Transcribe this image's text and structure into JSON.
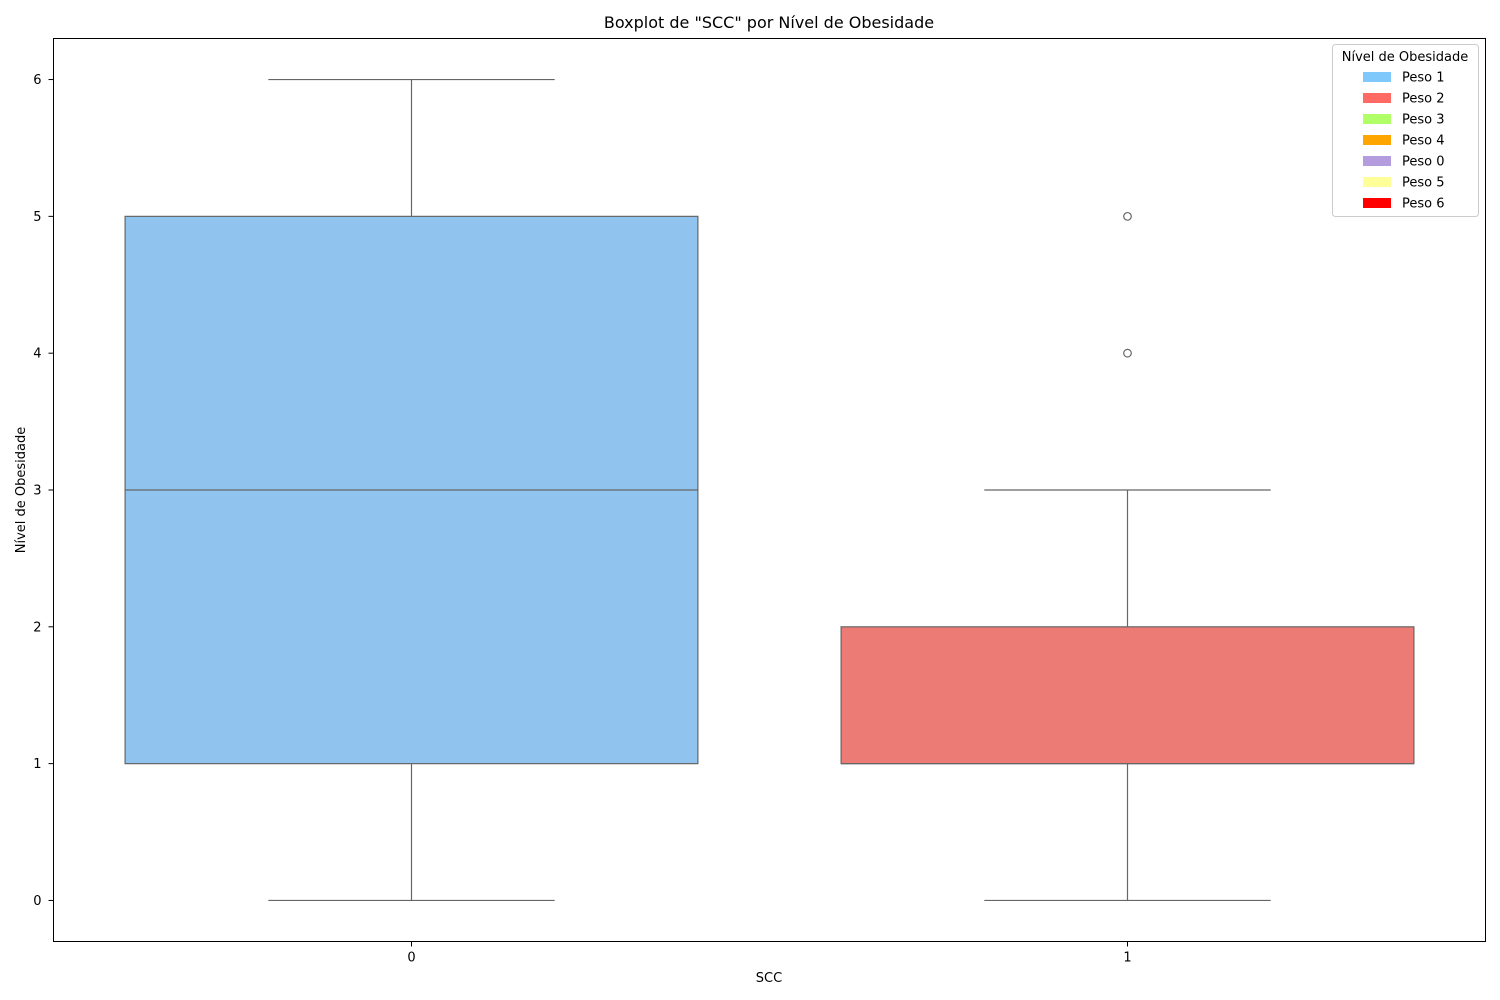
{
  "chart_data": {
    "type": "box",
    "title": "Boxplot de \"SCC\" por Nível de Obesidade",
    "xlabel": "SCC",
    "ylabel": "Nível de Obesidade",
    "ylim": [
      -0.3,
      6.3
    ],
    "yticks": [
      0,
      1,
      2,
      3,
      4,
      5,
      6
    ],
    "grid": false,
    "categories": [
      "0",
      "1"
    ],
    "boxes": [
      {
        "category": "0",
        "whisker_low": 0,
        "q1": 1,
        "median": 3,
        "q3": 5,
        "whisker_high": 6,
        "outliers": [],
        "color": "#90c4ef"
      },
      {
        "category": "1",
        "whisker_low": 0,
        "q1": 1,
        "median": 1,
        "q3": 2,
        "whisker_high": 3,
        "outliers": [
          4,
          5
        ],
        "color": "#ec7b75"
      }
    ],
    "legend": {
      "title": "Nível de Obesidade",
      "position": "top-right",
      "items": [
        {
          "label": "Peso 1",
          "color": "#7ec8fb"
        },
        {
          "label": "Peso 2",
          "color": "#ff6b64"
        },
        {
          "label": "Peso 3",
          "color": "#b0ff66"
        },
        {
          "label": "Peso 4",
          "color": "#ffa500"
        },
        {
          "label": "Peso 0",
          "color": "#b39ddf"
        },
        {
          "label": "Peso 5",
          "color": "#ffff99"
        },
        {
          "label": "Peso 6",
          "color": "#ff0000"
        }
      ]
    }
  }
}
